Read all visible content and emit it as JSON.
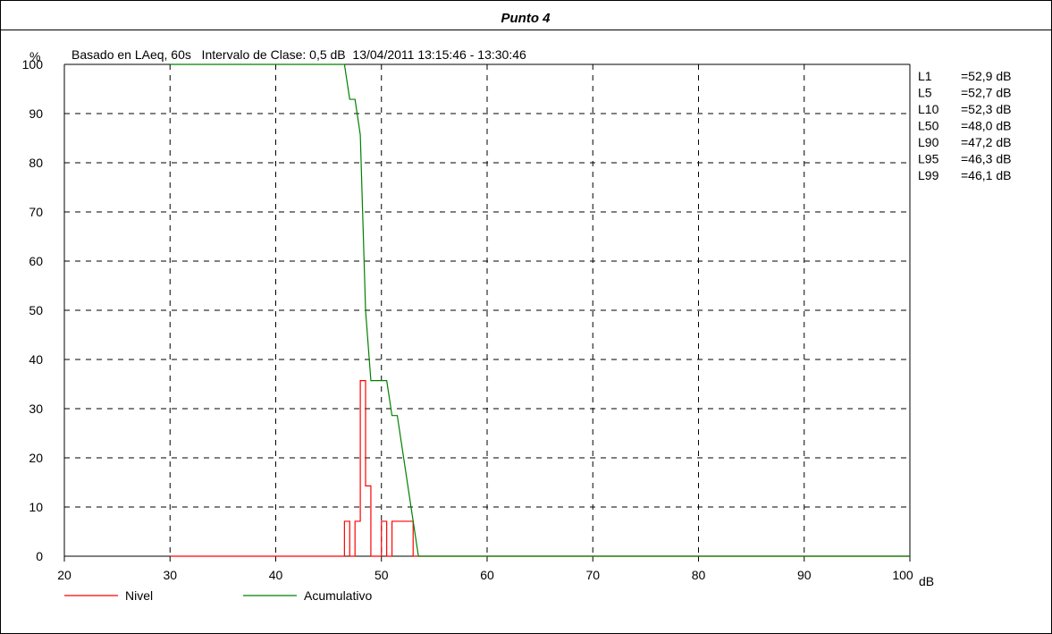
{
  "chart_data": {
    "type": "line",
    "title": "Punto 4",
    "subtitle": "Basado en LAeq, 60s   Intervalo de Clase: 0,5 dB  13/04/2011 13:15:46 - 13:30:46",
    "ylabel": "%",
    "xlabel": "dB",
    "xlim": [
      20,
      100
    ],
    "ylim": [
      0,
      100
    ],
    "x_ticks": [
      20,
      30,
      40,
      50,
      60,
      70,
      80,
      90,
      100
    ],
    "y_ticks": [
      0,
      10,
      20,
      30,
      40,
      50,
      60,
      70,
      80,
      90,
      100
    ],
    "grid": true,
    "legend_position": "bottom-left",
    "stats": [
      {
        "label": "L1",
        "value": "=52,9 dB"
      },
      {
        "label": "L5",
        "value": "=52,7 dB"
      },
      {
        "label": "L10",
        "value": "=52,3 dB"
      },
      {
        "label": "L50",
        "value": "=48,0 dB"
      },
      {
        "label": "L90",
        "value": "=47,2 dB"
      },
      {
        "label": "L95",
        "value": "=46,3 dB"
      },
      {
        "label": "L99",
        "value": "=46,1 dB"
      }
    ],
    "series": [
      {
        "name": "Nivel",
        "color": "#ff0000",
        "step": true,
        "points": [
          [
            30,
            0
          ],
          [
            46.5,
            0
          ],
          [
            46.5,
            7.1
          ],
          [
            47,
            7.1
          ],
          [
            47,
            0
          ],
          [
            47.5,
            0
          ],
          [
            47.5,
            7.1
          ],
          [
            48,
            7.1
          ],
          [
            48,
            35.7
          ],
          [
            48.5,
            35.7
          ],
          [
            48.5,
            14.3
          ],
          [
            49,
            14.3
          ],
          [
            49,
            0
          ],
          [
            50,
            0
          ],
          [
            50,
            7.1
          ],
          [
            50.5,
            7.1
          ],
          [
            50.5,
            0
          ],
          [
            51,
            0
          ],
          [
            51,
            7.1
          ],
          [
            53,
            7.1
          ],
          [
            53,
            0
          ],
          [
            100,
            0
          ]
        ]
      },
      {
        "name": "Acumulativo",
        "color": "#008000",
        "step": false,
        "points": [
          [
            30,
            100
          ],
          [
            46.5,
            100
          ],
          [
            47,
            92.9
          ],
          [
            47.5,
            92.9
          ],
          [
            48,
            85.7
          ],
          [
            48.5,
            50
          ],
          [
            49,
            35.7
          ],
          [
            50,
            35.7
          ],
          [
            50.5,
            35.7
          ],
          [
            51,
            28.6
          ],
          [
            51.5,
            28.6
          ],
          [
            53.5,
            0
          ],
          [
            100,
            0
          ]
        ]
      }
    ]
  }
}
